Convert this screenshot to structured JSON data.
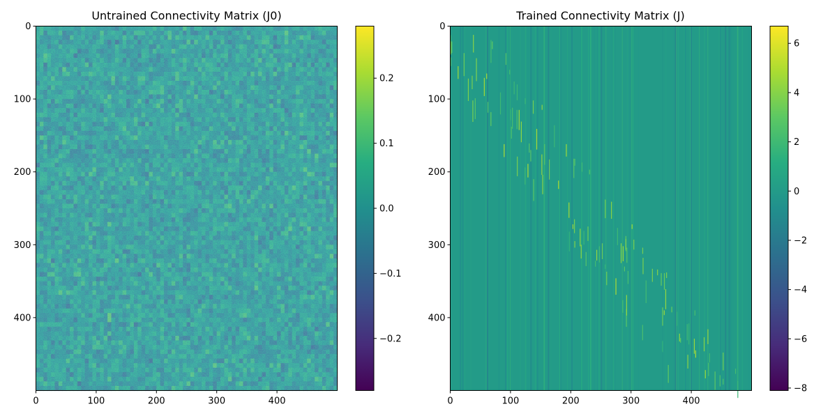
{
  "chart_data": [
    {
      "type": "heatmap",
      "title": "Untrained Connectivity Matrix (J0)",
      "matrix_size": [
        500,
        500
      ],
      "colormap": "viridis",
      "description": "dense random noise centered on 0 with std approx 0.05",
      "value_range": [
        -0.28,
        0.28
      ],
      "xlim": [
        0,
        500
      ],
      "ylim": [
        500,
        0
      ],
      "xticks": [
        0,
        100,
        200,
        300,
        400
      ],
      "yticks": [
        0,
        100,
        200,
        300,
        400
      ],
      "colorbar_ticks": [
        0.2,
        0.1,
        0.0,
        -0.1,
        -0.2
      ],
      "colorbar_tick_labels": [
        "0.2",
        "0.1",
        "0.0",
        "−0.1",
        "−0.2"
      ],
      "grid": false
    },
    {
      "type": "heatmap",
      "title": "Trained Connectivity Matrix (J)",
      "matrix_size": [
        500,
        500
      ],
      "colormap": "viridis",
      "description": "mostly near 0; sparse vertical column streaks and bright diagonal-ish band of positive values",
      "value_range": [
        -8.1,
        6.7
      ],
      "xlim": [
        0,
        500
      ],
      "ylim": [
        500,
        0
      ],
      "xticks": [
        0,
        100,
        200,
        300,
        400
      ],
      "yticks": [
        0,
        100,
        200,
        300,
        400
      ],
      "colorbar_ticks": [
        6,
        4,
        2,
        0,
        -2,
        -4,
        -6,
        -8
      ],
      "colorbar_tick_labels": [
        "6",
        "4",
        "2",
        "0",
        "−2",
        "−4",
        "−6",
        "−8"
      ],
      "grid": false
    }
  ]
}
